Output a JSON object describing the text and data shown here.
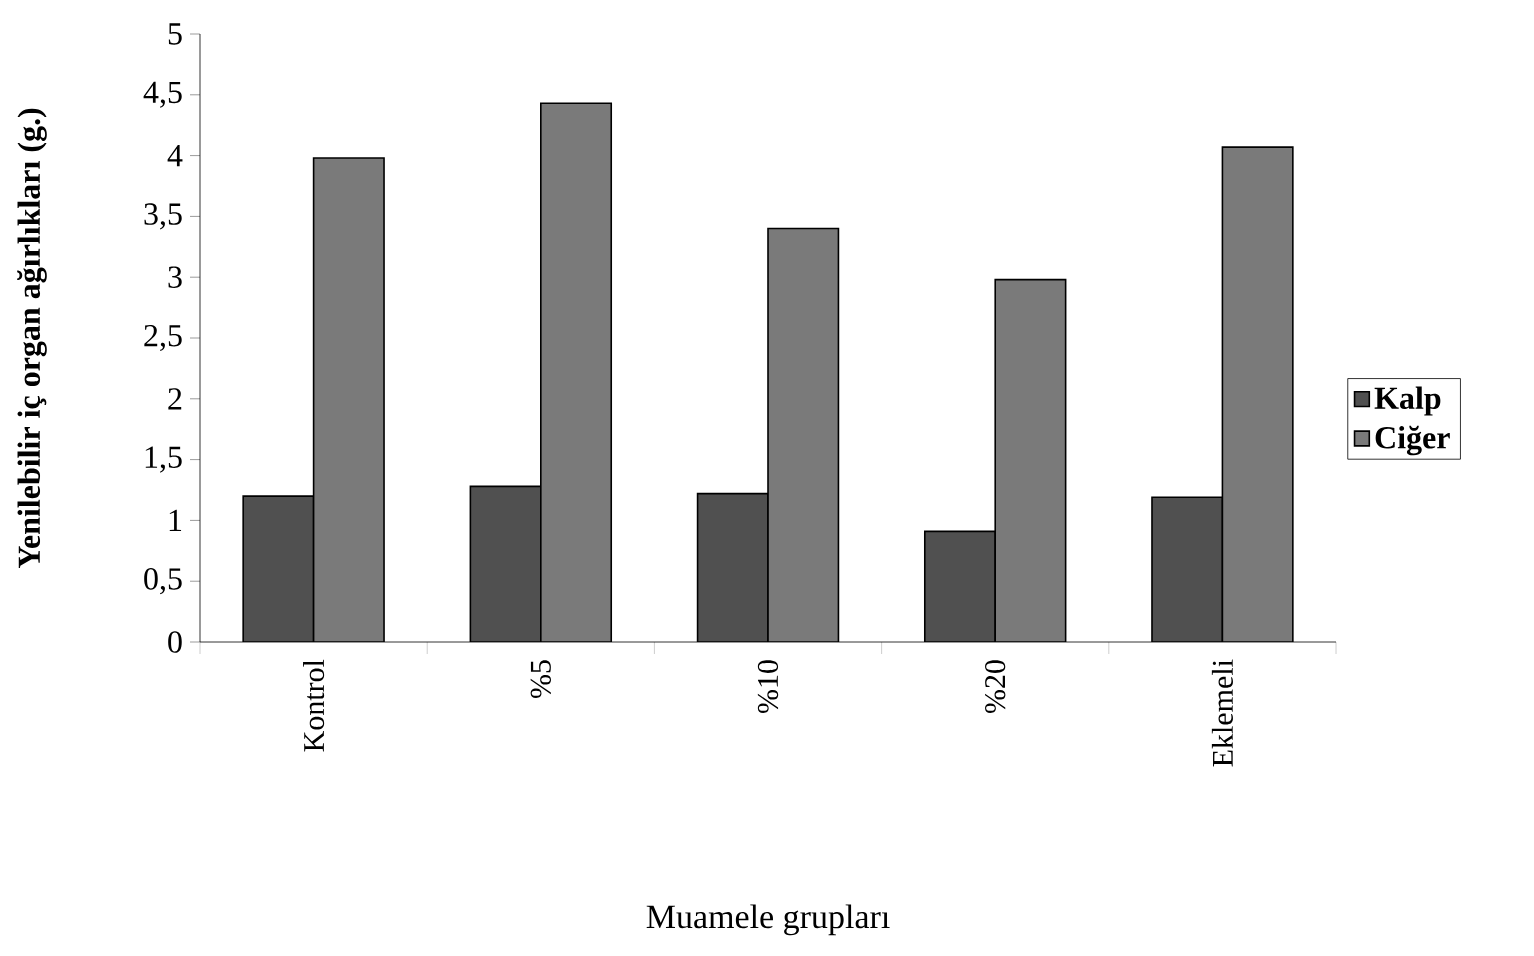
{
  "chart_data": {
    "type": "bar",
    "categories": [
      "Kontrol",
      "%5",
      "%10",
      "%20",
      "Eklemeli"
    ],
    "series": [
      {
        "name": "Kalp",
        "color": "#505050",
        "values": [
          1.2,
          1.28,
          1.22,
          0.91,
          1.19
        ]
      },
      {
        "name": "Ciğer",
        "color": "#7a7a7a",
        "values": [
          3.98,
          4.43,
          3.4,
          2.98,
          4.07
        ]
      }
    ],
    "xlabel": "Muamele grupları",
    "ylabel": "Yenilebilir iç organ ağırlıkları (g.)",
    "ylim": [
      0,
      5
    ],
    "yticks": [
      0,
      {
        "value": 0.5,
        "label": "0,5"
      },
      1,
      {
        "value": 1.5,
        "label": "1,5"
      },
      2,
      {
        "value": 2.5,
        "label": "2,5"
      },
      3,
      {
        "value": 3.5,
        "label": "3,5"
      },
      4,
      {
        "value": 4.5,
        "label": "4,5"
      },
      5
    ],
    "grid": false,
    "legend": "right"
  }
}
